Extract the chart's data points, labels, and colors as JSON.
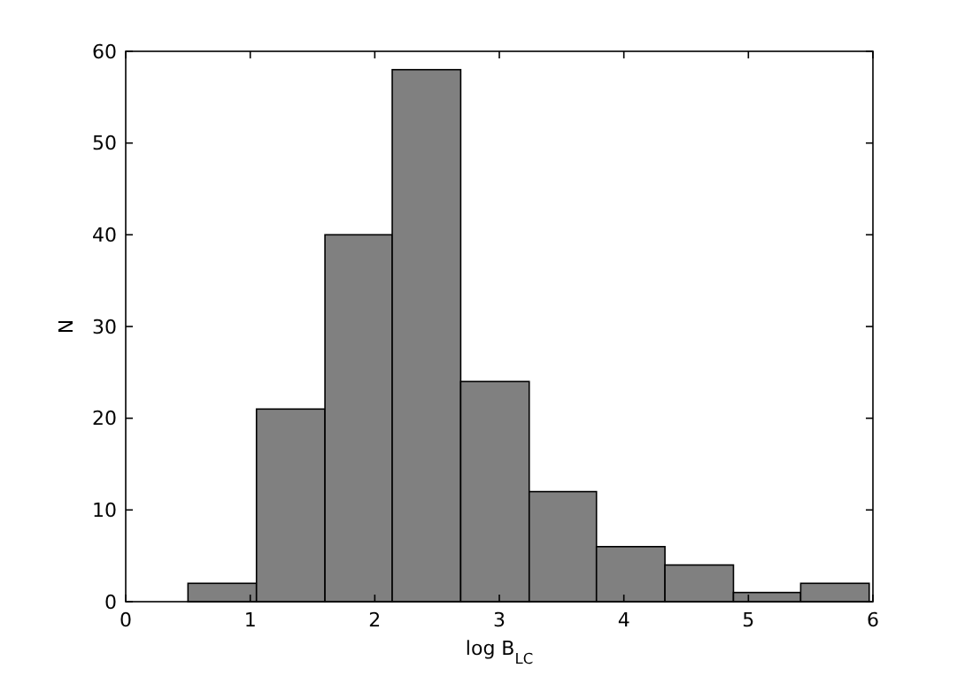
{
  "chart_data": {
    "type": "histogram",
    "xlabel": "log B$_{LC}$",
    "ylabel": "N",
    "bins": [
      0.5,
      1.05,
      1.6,
      2.14,
      2.69,
      3.24,
      3.78,
      4.33,
      4.88,
      5.42,
      5.97
    ],
    "values": [
      2,
      21,
      40,
      58,
      24,
      12,
      6,
      4,
      1,
      2
    ],
    "color": "#808080",
    "xlim": [
      0,
      6
    ],
    "xticks": [
      0,
      1,
      2,
      3,
      4,
      5,
      6
    ],
    "ylim": [
      0,
      60
    ],
    "yticks": [
      0,
      10,
      20,
      30,
      40,
      50,
      60
    ]
  }
}
